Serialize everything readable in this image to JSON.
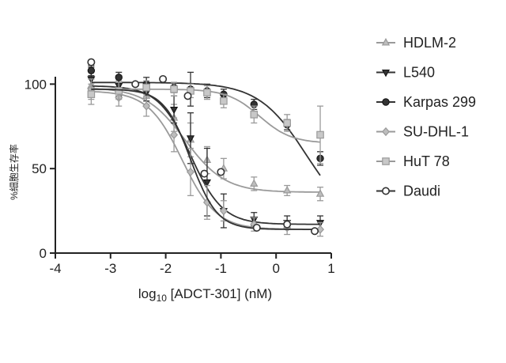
{
  "chart_data": {
    "type": "scatter",
    "xlabel_prefix": "log",
    "xlabel_sub": "10",
    "xlabel_rest": " [ADCT-301] (nM)",
    "ylabel": "%細胞生存率",
    "xlim": [
      -4,
      1
    ],
    "ylim": [
      0,
      110
    ],
    "xticks": [
      "-4",
      "-3",
      "-2",
      "-1",
      "0",
      "1"
    ],
    "yticks": [
      "0",
      "50",
      "100"
    ],
    "grid": false,
    "legend_position": "right",
    "series": [
      {
        "name": "HDLM-2",
        "marker": "triangle-up",
        "color": "#9a9a9a",
        "x": [
          -3.35,
          -2.85,
          -2.35,
          -1.85,
          -1.55,
          -1.25,
          -0.95,
          -0.4,
          0.2,
          0.8
        ],
        "y": [
          99,
          97,
          93,
          80,
          67,
          55,
          50,
          41,
          37,
          35
        ],
        "err": [
          4,
          5,
          5,
          8,
          10,
          8,
          6,
          4,
          3,
          4
        ],
        "curve": {
          "top": 98,
          "bottom": 36,
          "logec50": -1.65,
          "hill": -1.2
        }
      },
      {
        "name": "L540",
        "marker": "triangle-down",
        "color": "#333333",
        "x": [
          -3.35,
          -2.85,
          -2.35,
          -1.85,
          -1.55,
          -1.25,
          -0.95,
          -0.4,
          0.2,
          0.8
        ],
        "y": [
          103,
          99,
          95,
          85,
          68,
          42,
          25,
          20,
          18,
          18
        ],
        "err": [
          7,
          6,
          5,
          8,
          15,
          20,
          10,
          4,
          4,
          4
        ],
        "curve": {
          "top": 99,
          "bottom": 17,
          "logec50": -1.55,
          "hill": -1.5
        }
      },
      {
        "name": "Karpas 299",
        "marker": "circle-filled",
        "color": "#333333",
        "x": [
          -3.35,
          -2.85,
          -2.35,
          -1.85,
          -1.55,
          -1.25,
          -0.95,
          -0.4,
          0.2,
          0.8
        ],
        "y": [
          108,
          104,
          100,
          98,
          97,
          96,
          94,
          88,
          76,
          56
        ],
        "err": [
          3,
          3,
          4,
          3,
          10,
          4,
          3,
          3,
          3,
          4
        ],
        "curve": {
          "top": 101,
          "bottom": 15,
          "logec50": 0.55,
          "hill": -1.0
        }
      },
      {
        "name": "SU-DHL-1",
        "marker": "diamond",
        "color": "#9a9a9a",
        "x": [
          -3.35,
          -2.85,
          -2.35,
          -1.85,
          -1.55,
          -1.25,
          -0.95,
          -0.4,
          0.2,
          0.8
        ],
        "y": [
          97,
          92,
          87,
          70,
          48,
          30,
          25,
          17,
          15,
          14
        ],
        "err": [
          6,
          5,
          6,
          10,
          14,
          10,
          6,
          4,
          4,
          4
        ],
        "curve": {
          "top": 96,
          "bottom": 14,
          "logec50": -1.7,
          "hill": -1.4
        }
      },
      {
        "name": "HuT 78",
        "marker": "square",
        "color": "#9a9a9a",
        "x": [
          -3.35,
          -2.85,
          -2.35,
          -1.85,
          -1.55,
          -1.25,
          -0.95,
          -0.4,
          0.2,
          0.8
        ],
        "y": [
          94,
          96,
          98,
          97,
          96,
          95,
          90,
          82,
          77,
          70
        ],
        "err": [
          6,
          5,
          4,
          4,
          4,
          4,
          4,
          5,
          5,
          17
        ],
        "curve": {
          "top": 97,
          "bottom": 65,
          "logec50": -0.3,
          "hill": -1.5
        }
      },
      {
        "name": "Daudi",
        "marker": "circle-open",
        "color": "#333333",
        "x": [
          -3.35,
          -2.55,
          -2.05,
          -1.6,
          -1.3,
          -1.0,
          -0.35,
          0.2,
          0.7
        ],
        "y": [
          113,
          100,
          103,
          93,
          47,
          48,
          15,
          17,
          13
        ],
        "err": [
          0,
          0,
          0,
          0,
          0,
          0,
          0,
          0,
          0
        ],
        "curve": {
          "top": 97,
          "bottom": 14,
          "logec50": -1.55,
          "hill": -1.8
        }
      }
    ]
  }
}
